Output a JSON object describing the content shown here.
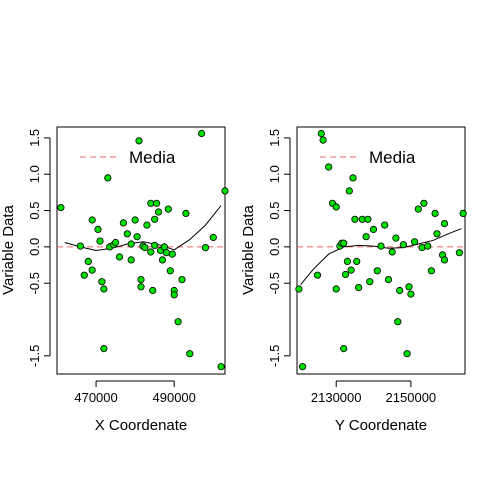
{
  "chart_data": [
    {
      "type": "scatter",
      "xlabel": "X Coordenate",
      "ylabel": "Variable Data",
      "xlim": [
        460000,
        503000
      ],
      "ylim": [
        -1.75,
        1.65
      ],
      "xticks": [
        470000,
        490000
      ],
      "xtick_labels": [
        "470000",
        "490000"
      ],
      "yticks": [
        -1.5,
        -0.5,
        0.0,
        0.5,
        1.0,
        1.5
      ],
      "ytick_labels": [
        "-1.5",
        "-0.5",
        "0.0",
        "0.5",
        "1.0",
        "1.5"
      ],
      "reference_line": {
        "y": 0,
        "label": "Media",
        "color": "#ee6666"
      },
      "legend": {
        "placement": "top",
        "entries": [
          "Media"
        ]
      },
      "point_color": "#00dd00",
      "smooth_line": {
        "x": [
          462000,
          466000,
          470000,
          474000,
          478000,
          482000,
          486000,
          490000,
          494000,
          498000,
          502000
        ],
        "y": [
          0.06,
          0.0,
          -0.05,
          -0.02,
          0.04,
          0.07,
          0.03,
          -0.04,
          0.1,
          0.3,
          0.57
        ]
      },
      "points": [
        [
          461000,
          0.54
        ],
        [
          466000,
          0.01
        ],
        [
          467000,
          -0.39
        ],
        [
          468000,
          -0.2
        ],
        [
          469000,
          0.37
        ],
        [
          469000,
          -0.32
        ],
        [
          470500,
          0.24
        ],
        [
          471000,
          0.08
        ],
        [
          471500,
          -0.48
        ],
        [
          472000,
          -0.58
        ],
        [
          472000,
          -1.4
        ],
        [
          473000,
          0.95
        ],
        [
          473500,
          0.0
        ],
        [
          474500,
          0.03
        ],
        [
          475000,
          0.06
        ],
        [
          476000,
          -0.14
        ],
        [
          477000,
          0.33
        ],
        [
          478000,
          0.18
        ],
        [
          479000,
          -0.18
        ],
        [
          479000,
          0.04
        ],
        [
          480000,
          0.37
        ],
        [
          480500,
          0.14
        ],
        [
          481000,
          1.46
        ],
        [
          481500,
          -0.45
        ],
        [
          481500,
          -0.55
        ],
        [
          482000,
          0.01
        ],
        [
          482500,
          -0.01
        ],
        [
          483000,
          0.3
        ],
        [
          484000,
          0.6
        ],
        [
          484000,
          -0.07
        ],
        [
          484500,
          -0.6
        ],
        [
          485000,
          0.38
        ],
        [
          485500,
          0.6
        ],
        [
          485000,
          0.02
        ],
        [
          486000,
          0.48
        ],
        [
          486500,
          -0.05
        ],
        [
          487000,
          -0.18
        ],
        [
          487500,
          0.0
        ],
        [
          488000,
          -0.08
        ],
        [
          488500,
          0.52
        ],
        [
          489000,
          -0.33
        ],
        [
          489500,
          -0.1
        ],
        [
          490000,
          -0.6
        ],
        [
          490000,
          -0.66
        ],
        [
          491000,
          -1.03
        ],
        [
          492000,
          -0.45
        ],
        [
          493000,
          0.46
        ],
        [
          494000,
          -1.47
        ],
        [
          497000,
          1.56
        ],
        [
          498000,
          -0.01
        ],
        [
          500000,
          0.13
        ],
        [
          502000,
          -1.65
        ],
        [
          503000,
          0.77
        ]
      ]
    },
    {
      "type": "scatter",
      "xlabel": "Y Coordenate",
      "ylabel": "Variable Data",
      "xlim": [
        2119500,
        2164500
      ],
      "ylim": [
        -1.75,
        1.65
      ],
      "xticks": [
        2130000,
        2150000
      ],
      "xtick_labels": [
        "2130000",
        "2150000"
      ],
      "yticks": [
        -1.5,
        -0.5,
        0.0,
        0.5,
        1.0,
        1.5
      ],
      "ytick_labels": [
        "-1.5",
        "-0.5",
        "0.0",
        "0.5",
        "1.0",
        "1.5"
      ],
      "reference_line": {
        "y": 0,
        "label": "Media",
        "color": "#ee6666"
      },
      "legend": {
        "placement": "top",
        "entries": [
          "Media"
        ]
      },
      "point_color": "#00dd00",
      "smooth_line": {
        "x": [
          2120500,
          2124000,
          2128000,
          2132000,
          2136000,
          2140000,
          2144000,
          2148000,
          2152000,
          2156000,
          2160000,
          2163500
        ],
        "y": [
          -0.52,
          -0.3,
          -0.1,
          0.0,
          0.02,
          0.01,
          -0.02,
          -0.01,
          0.04,
          0.09,
          0.18,
          0.25
        ]
      },
      "points": [
        [
          2120000,
          -0.58
        ],
        [
          2121000,
          -1.65
        ],
        [
          2125000,
          -0.39
        ],
        [
          2126000,
          1.56
        ],
        [
          2126500,
          1.47
        ],
        [
          2128000,
          1.1
        ],
        [
          2129000,
          0.6
        ],
        [
          2130000,
          -0.58
        ],
        [
          2130000,
          0.55
        ],
        [
          2131000,
          0.01
        ],
        [
          2131500,
          0.05
        ],
        [
          2132000,
          0.05
        ],
        [
          2132000,
          -1.4
        ],
        [
          2132500,
          -0.38
        ],
        [
          2133000,
          -0.2
        ],
        [
          2133500,
          0.77
        ],
        [
          2134000,
          -0.32
        ],
        [
          2134500,
          0.95
        ],
        [
          2135000,
          0.38
        ],
        [
          2135500,
          -0.2
        ],
        [
          2136000,
          -0.56
        ],
        [
          2137000,
          0.38
        ],
        [
          2138000,
          0.14
        ],
        [
          2138500,
          0.38
        ],
        [
          2139000,
          -0.48
        ],
        [
          2140000,
          0.24
        ],
        [
          2141000,
          -0.33
        ],
        [
          2142000,
          0.01
        ],
        [
          2143000,
          0.3
        ],
        [
          2144000,
          -0.45
        ],
        [
          2145000,
          -0.07
        ],
        [
          2146000,
          0.12
        ],
        [
          2146500,
          -1.03
        ],
        [
          2147000,
          -0.6
        ],
        [
          2148000,
          0.03
        ],
        [
          2149000,
          -1.47
        ],
        [
          2149500,
          -0.55
        ],
        [
          2150000,
          -0.65
        ],
        [
          2151000,
          0.07
        ],
        [
          2152000,
          0.52
        ],
        [
          2153000,
          -0.01
        ],
        [
          2153500,
          0.6
        ],
        [
          2154500,
          0.01
        ],
        [
          2155500,
          -0.33
        ],
        [
          2156500,
          0.46
        ],
        [
          2157000,
          0.18
        ],
        [
          2158500,
          -0.11
        ],
        [
          2159000,
          -0.18
        ],
        [
          2159000,
          0.32
        ],
        [
          2163000,
          -0.08
        ],
        [
          2164000,
          0.46
        ]
      ]
    }
  ]
}
